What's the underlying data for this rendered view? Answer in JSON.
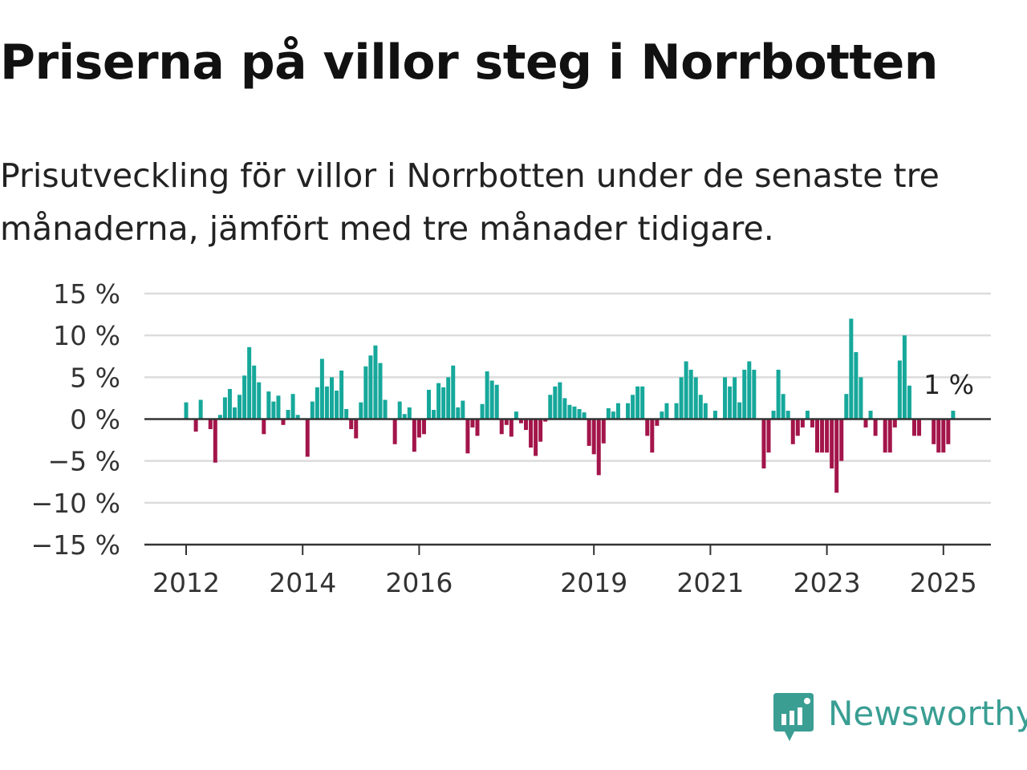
{
  "title": "Priserna på villor steg i Norrbotten",
  "subtitle": "Prisutveckling för villor i Norrbotten under de senaste tre månaderna, jämfört med tre månader tidigare.",
  "brand": {
    "name": "Newsworthy",
    "icon": "newsworthy-logo-icon",
    "color": "#3a9e93"
  },
  "chart_data": {
    "type": "bar",
    "x_start": "2011-05",
    "x_step": "month",
    "ylabel": "",
    "y_unit": "%",
    "ylim": [
      -15,
      15
    ],
    "yticks": [
      15,
      10,
      5,
      0,
      -5,
      -10,
      -15
    ],
    "ytick_labels": [
      "15 %",
      "10 %",
      "5 %",
      "0 %",
      "−5 %",
      "−10 %",
      "−15 %"
    ],
    "xticks": [
      {
        "label": "2012",
        "date": "2012-01"
      },
      {
        "label": "2014",
        "date": "2014-01"
      },
      {
        "label": "2016",
        "date": "2016-01"
      },
      {
        "label": "2019",
        "date": "2019-01"
      },
      {
        "label": "2021",
        "date": "2021-01"
      },
      {
        "label": "2023",
        "date": "2023-01"
      },
      {
        "label": "2025",
        "date": "2025-01"
      }
    ],
    "positive_color": "#16a89b",
    "negative_color": "#a3154a",
    "grid": true,
    "last_value_label": "1 %",
    "values": [
      null,
      null,
      null,
      null,
      null,
      null,
      null,
      null,
      2.0,
      null,
      -1.5,
      2.3,
      null,
      -1.2,
      -5.2,
      0.5,
      2.6,
      3.6,
      1.4,
      2.9,
      5.2,
      8.6,
      6.4,
      4.4,
      -1.8,
      3.3,
      2.1,
      2.8,
      -0.7,
      1.1,
      3.0,
      0.5,
      null,
      -4.5,
      2.1,
      3.8,
      7.2,
      3.9,
      5.0,
      3.4,
      5.8,
      1.2,
      -1.2,
      -2.3,
      2.0,
      6.3,
      7.6,
      8.8,
      6.7,
      2.3,
      null,
      -3.0,
      2.1,
      0.6,
      1.4,
      -3.9,
      -2.2,
      -1.8,
      3.5,
      1.1,
      4.3,
      3.8,
      5.0,
      6.4,
      1.4,
      2.2,
      -4.1,
      -1.0,
      -2.0,
      1.8,
      5.7,
      4.6,
      4.1,
      -1.8,
      -0.7,
      -2.1,
      0.9,
      -0.5,
      -1.3,
      -3.4,
      -4.4,
      -2.7,
      -0.3,
      2.9,
      3.9,
      4.4,
      2.5,
      1.7,
      1.5,
      1.2,
      0.8,
      -3.2,
      -4.2,
      -6.7,
      -2.9,
      1.3,
      0.9,
      1.9,
      null,
      1.9,
      2.9,
      3.9,
      3.9,
      -2.0,
      -4.0,
      -0.8,
      0.9,
      1.9,
      null,
      1.9,
      5.0,
      6.9,
      5.9,
      5.0,
      2.9,
      1.9,
      null,
      1.0,
      null,
      5.0,
      3.9,
      5.0,
      2.0,
      5.9,
      6.9,
      5.9,
      null,
      -5.9,
      -4.0,
      1.0,
      5.9,
      3.0,
      1.0,
      -3.0,
      -2.0,
      -1.0,
      1.0,
      -1.0,
      -4.0,
      -4.0,
      -4.0,
      -5.9,
      -8.8,
      -5.0,
      3.0,
      12.0,
      8.0,
      5.0,
      -1.0,
      1.0,
      -2.0,
      null,
      -4.0,
      -4.0,
      -1.0,
      7.0,
      10.0,
      4.0,
      -2.0,
      -2.0,
      null,
      null,
      -3.0,
      -4.0,
      -4.0,
      -3.0,
      1.0
    ]
  }
}
